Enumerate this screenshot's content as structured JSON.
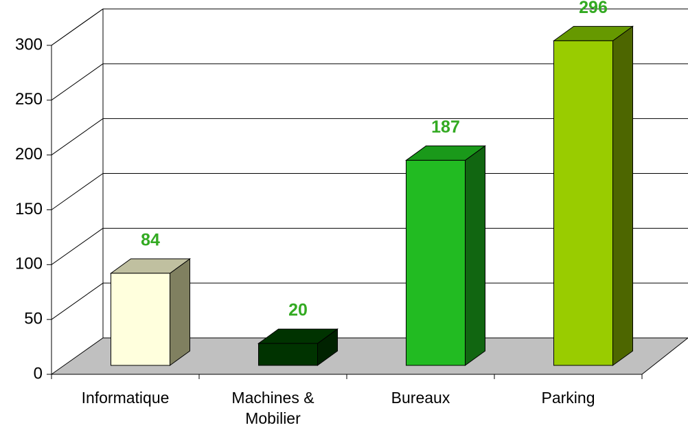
{
  "chart_data": {
    "type": "bar3d",
    "categories": [
      "Informatique",
      "Machines & Mobilier",
      "Bureaux",
      "Parking"
    ],
    "values": [
      84,
      20,
      187,
      296
    ],
    "colors": [
      {
        "front": "#ffffdd",
        "top": "#c0c0a0",
        "side": "#808060"
      },
      {
        "front": "#003300",
        "top": "#003300",
        "side": "#002200"
      },
      {
        "front": "#22bb22",
        "top": "#1a991a",
        "side": "#116611"
      },
      {
        "front": "#99cc00",
        "top": "#669900",
        "side": "#4d6600"
      }
    ],
    "label_color": "#33aa22",
    "ylim": [
      0,
      300
    ],
    "yticks": [
      0,
      50,
      100,
      150,
      200,
      250,
      300
    ],
    "grid": true
  }
}
